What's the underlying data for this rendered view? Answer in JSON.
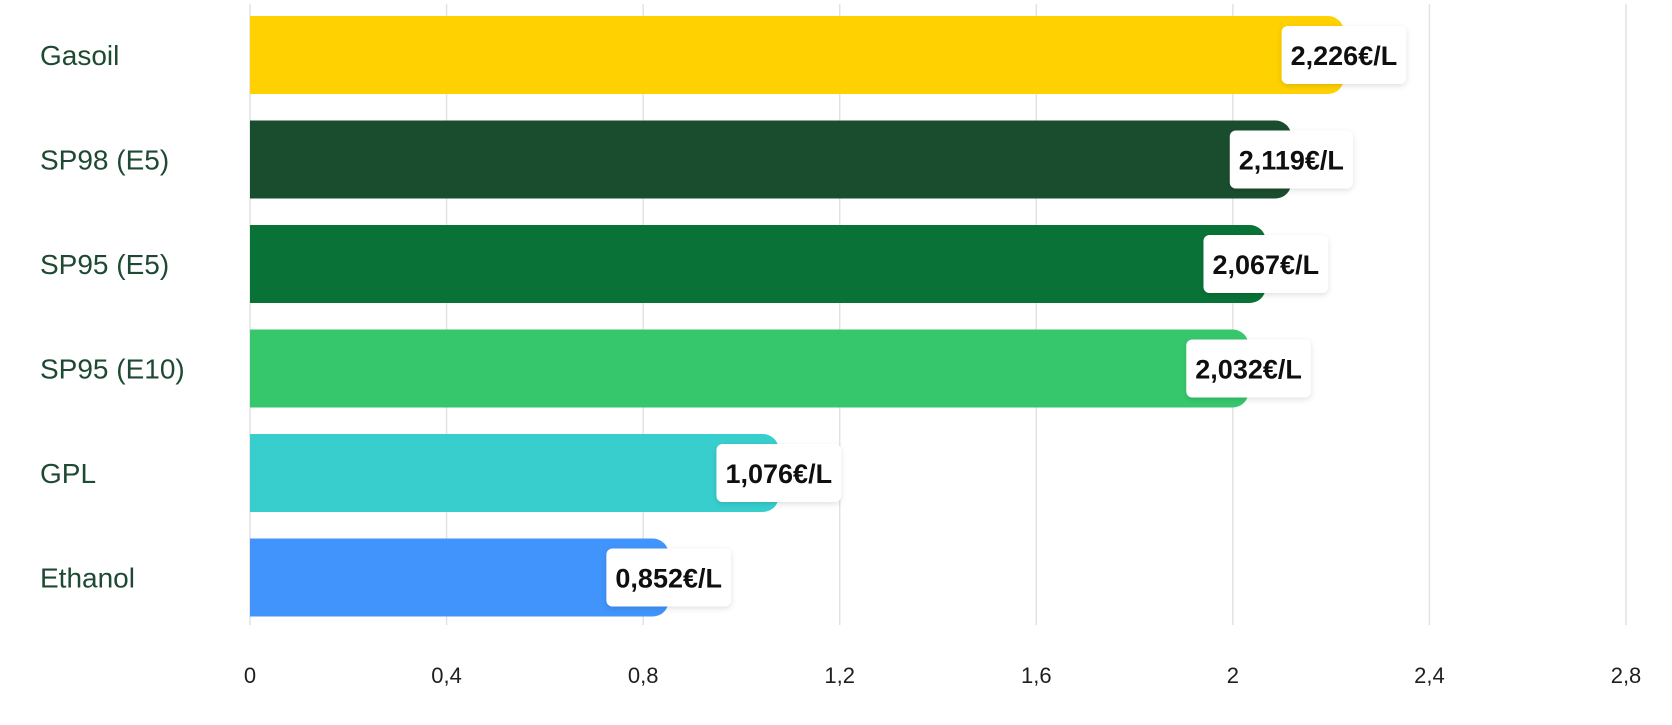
{
  "chart_data": {
    "type": "bar",
    "orientation": "horizontal",
    "title": "",
    "xlabel": "",
    "ylabel": "",
    "categories": [
      "Gasoil",
      "SP98 (E5)",
      "SP95 (E5)",
      "SP95 (E10)",
      "GPL",
      "Ethanol"
    ],
    "values": [
      2.226,
      2.119,
      2.067,
      2.032,
      1.076,
      0.852
    ],
    "value_labels": [
      "2,226€/L",
      "2,119€/L",
      "2,067€/L",
      "2,032€/L",
      "1,076€/L",
      "0,852€/L"
    ],
    "colors": [
      "#ffd100",
      "#1a4d2e",
      "#097236",
      "#36c76d",
      "#38cece",
      "#4194fb"
    ],
    "x_ticks": [
      0,
      0.4,
      0.8,
      1.2,
      1.6,
      2,
      2.4,
      2.8
    ],
    "x_tick_labels": [
      "0",
      "0,4",
      "0,8",
      "1,2",
      "1,6",
      "2",
      "2,4",
      "2,8"
    ],
    "xlim": [
      0,
      2.8
    ],
    "grid": true,
    "legend": "none"
  }
}
